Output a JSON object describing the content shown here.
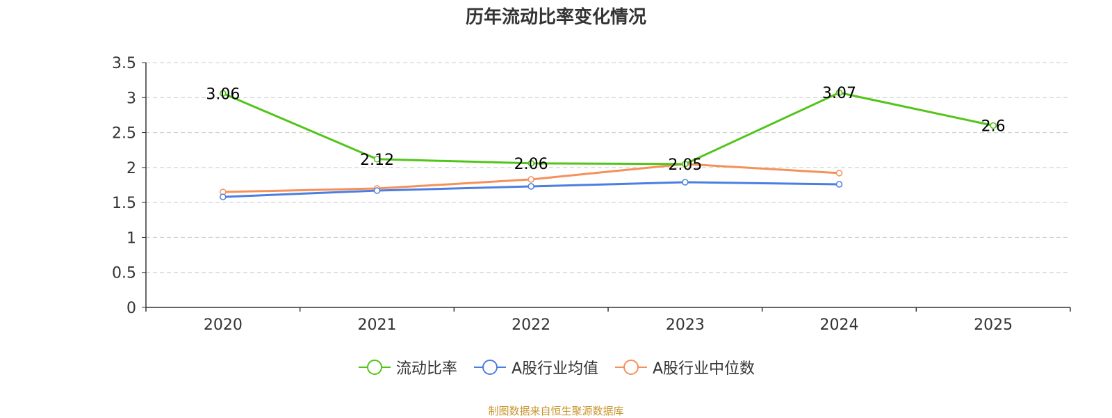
{
  "title": "历年流动比率变化情况",
  "source": "制图数据来自恒生聚源数据库",
  "colors": {
    "grid": "#cccccc",
    "axis": "#333333",
    "text": "#333333",
    "source": "#c8962e"
  },
  "chart_data": {
    "type": "line",
    "title": "历年流动比率变化情况",
    "xlabel": "",
    "ylabel": "",
    "categories": [
      "2020",
      "2021",
      "2022",
      "2023",
      "2024",
      "2025"
    ],
    "ylim": [
      0,
      3.5
    ],
    "yticks": [
      "0",
      "0.5",
      "1",
      "1.5",
      "2",
      "2.5",
      "3",
      "3.5"
    ],
    "grid": true,
    "legend_position": "bottom",
    "series": [
      {
        "name": "流动比率",
        "color": "#52c41a",
        "values": [
          3.06,
          2.12,
          2.06,
          2.05,
          3.07,
          2.6
        ],
        "labels": [
          "3.06",
          "2.12",
          "2.06",
          "2.05",
          "3.07",
          "2.6"
        ],
        "show_labels": true
      },
      {
        "name": "A股行业均值",
        "color": "#4a7ee0",
        "values": [
          1.58,
          1.67,
          1.73,
          1.79,
          1.76,
          null
        ],
        "show_labels": false
      },
      {
        "name": "A股行业中位数",
        "color": "#f5905a",
        "values": [
          1.65,
          1.7,
          1.83,
          2.05,
          1.92,
          null
        ],
        "show_labels": false
      }
    ]
  }
}
